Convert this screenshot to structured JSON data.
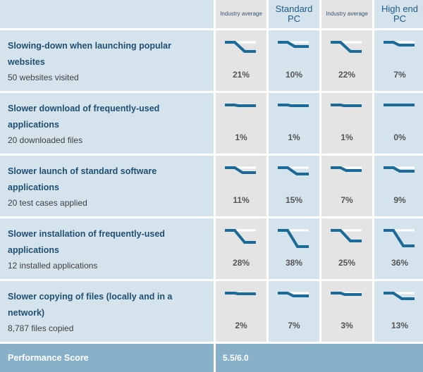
{
  "columns": [
    {
      "label": "Industry average",
      "style": "gray"
    },
    {
      "label": "Standard PC",
      "style": "blue"
    },
    {
      "label": "Industry average",
      "style": "gray"
    },
    {
      "label": "High end PC",
      "style": "blue"
    }
  ],
  "rows": [
    {
      "title": "Slowing-down when launching popular websites",
      "subtitle": "50 websites visited",
      "values": [
        "21%",
        "10%",
        "22%",
        "7%"
      ],
      "drops": [
        0.21,
        0.1,
        0.22,
        0.07
      ]
    },
    {
      "title": "Slower download of frequently-used applications",
      "subtitle": "20 downloaded files",
      "values": [
        "1%",
        "1%",
        "1%",
        "0%"
      ],
      "drops": [
        0.01,
        0.01,
        0.01,
        0.0
      ]
    },
    {
      "title": "Slower launch of standard software applications",
      "subtitle": "20 test cases applied",
      "values": [
        "11%",
        "15%",
        "7%",
        "9%"
      ],
      "drops": [
        0.11,
        0.15,
        0.07,
        0.09
      ]
    },
    {
      "title": "Slower installation of frequently-used applications",
      "subtitle": "12 installed applications",
      "values": [
        "28%",
        "38%",
        "25%",
        "36%"
      ],
      "drops": [
        0.28,
        0.38,
        0.25,
        0.36
      ]
    },
    {
      "title": "Slower copying of files (locally and in a network)",
      "subtitle": "8,787 files copied",
      "values": [
        "2%",
        "7%",
        "3%",
        "13%"
      ],
      "drops": [
        0.02,
        0.07,
        0.03,
        0.13
      ]
    }
  ],
  "score": {
    "label": "Performance Score",
    "value": "5.5/6.0"
  },
  "colors": {
    "line": "#1c6a97",
    "gray": "#e4e4e4",
    "blue": "#d5e3ed",
    "score_bar": "#88b0c8"
  }
}
